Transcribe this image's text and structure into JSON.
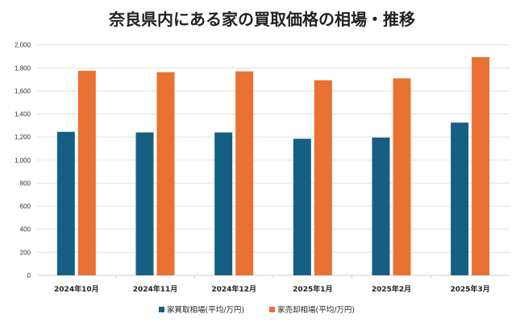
{
  "chart_data": {
    "type": "bar",
    "title": "奈良県内にある家の買取価格の相場・推移",
    "xlabel": "",
    "ylabel": "",
    "categories": [
      "2024年10月",
      "2024年11月",
      "2024年12月",
      "2025年1月",
      "2025年2月",
      "2025年3月"
    ],
    "series": [
      {
        "name": "家買取相場(平均/万円)",
        "color": "#155f83",
        "values": [
          1245,
          1240,
          1240,
          1185,
          1195,
          1325
        ]
      },
      {
        "name": "家売却相場(平均/万円)",
        "color": "#e97132",
        "values": [
          1775,
          1763,
          1770,
          1693,
          1709,
          1893
        ]
      }
    ],
    "ylim": [
      0,
      2000
    ],
    "yticks": [
      "0",
      "200",
      "400",
      "600",
      "800",
      "1,000",
      "1,200",
      "1,400",
      "1,600",
      "1,800",
      "2,000"
    ],
    "grid": true,
    "legend": "bottom"
  }
}
